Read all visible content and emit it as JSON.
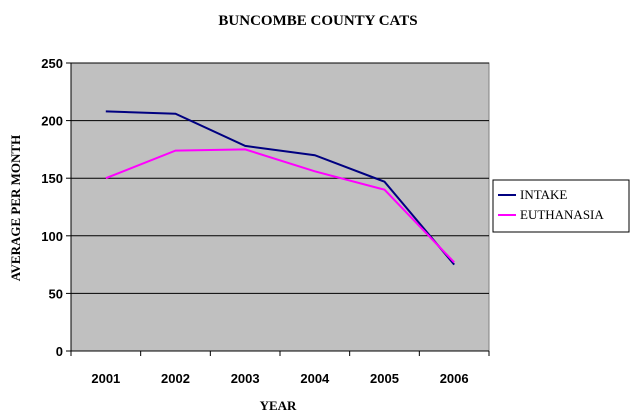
{
  "chart_data": {
    "type": "line",
    "title": "BUNCOMBE COUNTY CATS",
    "xlabel": "YEAR",
    "ylabel": "AVERAGE PER MONTH",
    "categories": [
      "2001",
      "2002",
      "2003",
      "2004",
      "2005",
      "2006"
    ],
    "ylim": [
      0,
      250
    ],
    "yticks": [
      0,
      50,
      100,
      150,
      200,
      250
    ],
    "grid": true,
    "plot_background": "#c0c0c0",
    "legend_position": "right",
    "series": [
      {
        "name": "INTAKE",
        "color": "#000080",
        "values": [
          208,
          206,
          178,
          170,
          147,
          75
        ]
      },
      {
        "name": "EUTHANASIA",
        "color": "#ff00ff",
        "values": [
          150,
          174,
          175,
          156,
          140,
          77
        ]
      }
    ]
  }
}
